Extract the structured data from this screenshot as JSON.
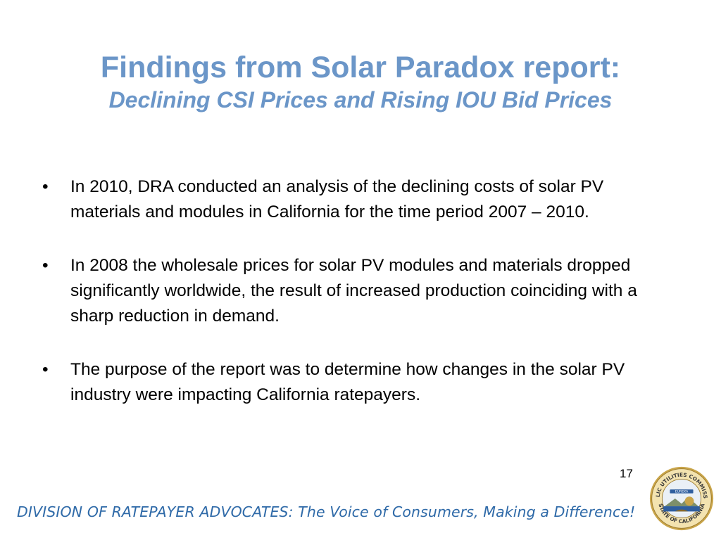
{
  "slide": {
    "title": "Findings from Solar Paradox report:",
    "subtitle": "Declining CSI Prices and Rising IOU Bid Prices",
    "bullets": [
      "In 2010, DRA conducted an analysis of the declining costs of solar PV materials and modules in California for the time period 2007 – 2010.",
      "In 2008 the wholesale prices for solar PV modules and materials dropped significantly worldwide, the result of increased production coinciding with a sharp reduction in demand.",
      "The purpose of the report was to determine how changes in the solar PV industry were impacting California ratepayers."
    ],
    "bullet_symbol": "•",
    "page_number": "17",
    "footer": "DIVISION OF RATEPAYER ADVOCATES: The Voice of Consumers, Making a Difference!",
    "seal": {
      "top_text": "PUBLIC UTILITIES COMMISSION",
      "bottom_text": "STATE OF CALIFORNIA",
      "banner_text": "EUREKA"
    }
  },
  "colors": {
    "title": "#6b96c8",
    "footer": "#2f6aa8",
    "seal_gold": "#c9a54a",
    "seal_blue": "#2f5e9e"
  }
}
